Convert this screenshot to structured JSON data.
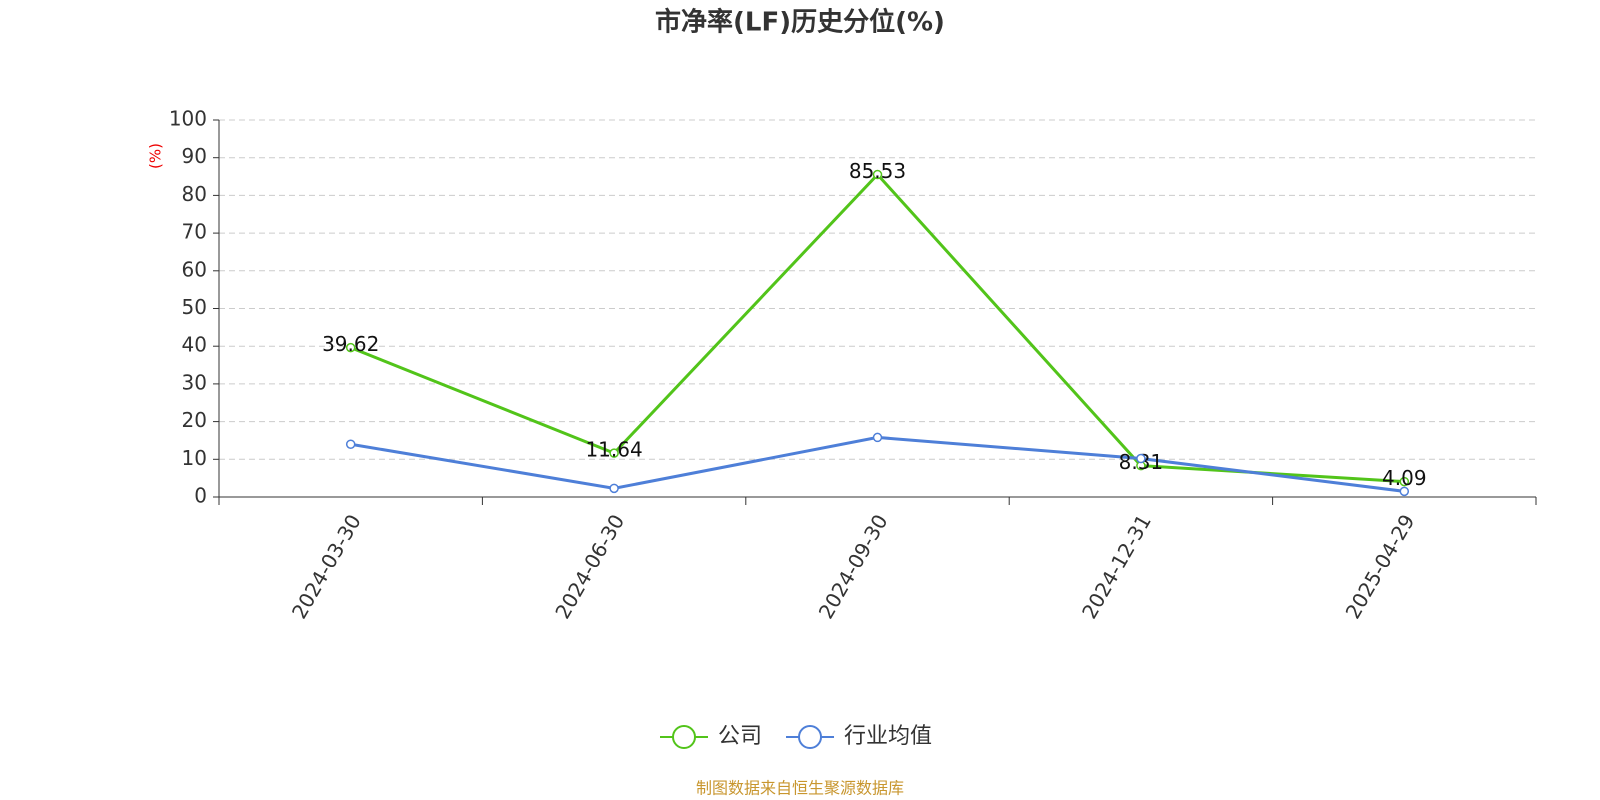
{
  "chart_data": {
    "type": "line",
    "title": "市净率(LF)历史分位(%)",
    "y_label": "(%)",
    "categories": [
      "2024-03-30",
      "2024-06-30",
      "2024-09-30",
      "2024-12-31",
      "2025-04-29"
    ],
    "series": [
      {
        "name": "公司",
        "color": "#52c41a",
        "values": [
          39.62,
          11.64,
          85.53,
          8.31,
          4.09
        ],
        "show_labels": true
      },
      {
        "name": "行业均值",
        "color": "#4e7fd8",
        "values": [
          14.0,
          2.3,
          15.8,
          10.2,
          1.5
        ],
        "show_labels": false
      }
    ],
    "ylim": [
      0,
      100
    ],
    "yticks": [
      0,
      10,
      20,
      30,
      40,
      50,
      60,
      70,
      80,
      90,
      100
    ],
    "grid": true,
    "source": "制图数据来自恒生聚源数据库"
  }
}
